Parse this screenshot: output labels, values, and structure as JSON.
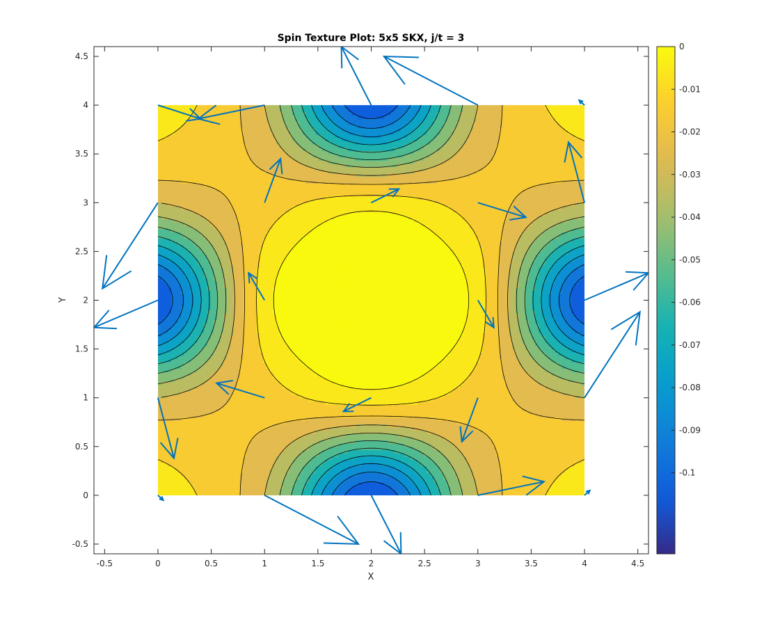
{
  "chart_data": {
    "type": "contour",
    "title": "Spin Texture Plot: 5x5 SKX, j/t = 3",
    "xlabel": "X",
    "ylabel": "Y",
    "xlim": [
      -0.6,
      4.6
    ],
    "ylim": [
      -0.6,
      4.6
    ],
    "xticks": [
      -0.5,
      0,
      0.5,
      1,
      1.5,
      2,
      2.5,
      3,
      3.5,
      4,
      4.5
    ],
    "xtick_labels": [
      "-0.5",
      "0",
      "0.5",
      "1",
      "1.5",
      "2",
      "2.5",
      "3",
      "3.5",
      "4",
      "4.5"
    ],
    "yticks": [
      -0.5,
      0,
      0.5,
      1,
      1.5,
      2,
      2.5,
      3,
      3.5,
      4,
      4.5
    ],
    "ytick_labels": [
      "-0.5",
      "0",
      "0.5",
      "1",
      "1.5",
      "2",
      "2.5",
      "3",
      "3.5",
      "4",
      "4.5"
    ],
    "grid": false,
    "x": [
      0,
      1,
      2,
      3,
      4
    ],
    "y": [
      0,
      1,
      2,
      3,
      4
    ],
    "z": [
      [
        -0.005,
        -0.03,
        -0.11,
        -0.03,
        -0.005
      ],
      [
        -0.03,
        -0.015,
        -0.005,
        -0.015,
        -0.03
      ],
      [
        -0.11,
        -0.005,
        0.0,
        -0.005,
        -0.11
      ],
      [
        -0.03,
        -0.015,
        -0.005,
        -0.015,
        -0.03
      ],
      [
        -0.005,
        -0.03,
        -0.11,
        -0.03,
        -0.005
      ]
    ],
    "contour_levels": [
      -0.11,
      -0.1,
      -0.09,
      -0.08,
      -0.07,
      -0.06,
      -0.05,
      -0.04,
      -0.03,
      -0.02,
      -0.01,
      -0.001
    ],
    "colorbar": {
      "min": -0.119,
      "max": 0.0,
      "ticks": [
        0,
        -0.01,
        -0.02,
        -0.03,
        -0.04,
        -0.05,
        -0.06,
        -0.07,
        -0.08,
        -0.09,
        -0.1
      ],
      "tick_labels": [
        "0",
        "-0.01",
        "-0.02",
        "-0.03",
        "-0.04",
        "-0.05",
        "-0.06",
        "-0.07",
        "-0.08",
        "-0.09",
        "-0.1"
      ],
      "colormap": "parula"
    },
    "quiver": {
      "color": "#0072BD",
      "arrows": [
        {
          "x": 0,
          "y": 0,
          "u": 0.05,
          "v": -0.05
        },
        {
          "x": 0,
          "y": 1,
          "u": 0.15,
          "v": -0.62
        },
        {
          "x": 0,
          "y": 2,
          "u": -0.6,
          "v": -0.28
        },
        {
          "x": 0,
          "y": 3,
          "u": -0.52,
          "v": -0.88
        },
        {
          "x": 0,
          "y": 4,
          "u": 0.4,
          "v": -0.14
        },
        {
          "x": 1,
          "y": 0,
          "u": 0.88,
          "v": -0.5
        },
        {
          "x": 1,
          "y": 1,
          "u": -0.45,
          "v": 0.15
        },
        {
          "x": 1,
          "y": 2,
          "u": -0.15,
          "v": 0.28
        },
        {
          "x": 1,
          "y": 3,
          "u": 0.15,
          "v": 0.45
        },
        {
          "x": 1,
          "y": 4,
          "u": -0.62,
          "v": -0.14
        },
        {
          "x": 2,
          "y": 0,
          "u": 0.28,
          "v": -0.6
        },
        {
          "x": 2,
          "y": 1,
          "u": -0.26,
          "v": -0.14
        },
        {
          "x": 2,
          "y": 2,
          "u": 0,
          "v": 0
        },
        {
          "x": 2,
          "y": 3,
          "u": 0.26,
          "v": 0.14
        },
        {
          "x": 2,
          "y": 4,
          "u": -0.28,
          "v": 0.6
        },
        {
          "x": 3,
          "y": 0,
          "u": 0.62,
          "v": 0.14
        },
        {
          "x": 3,
          "y": 1,
          "u": -0.15,
          "v": -0.45
        },
        {
          "x": 3,
          "y": 2,
          "u": 0.15,
          "v": -0.28
        },
        {
          "x": 3,
          "y": 3,
          "u": 0.45,
          "v": -0.15
        },
        {
          "x": 3,
          "y": 4,
          "u": -0.88,
          "v": 0.5
        },
        {
          "x": 4,
          "y": 0,
          "u": 0.05,
          "v": 0.05
        },
        {
          "x": 4,
          "y": 1,
          "u": 0.52,
          "v": 0.88
        },
        {
          "x": 4,
          "y": 2,
          "u": 0.6,
          "v": 0.28
        },
        {
          "x": 4,
          "y": 3,
          "u": -0.15,
          "v": 0.62
        },
        {
          "x": 4,
          "y": 4,
          "u": -0.05,
          "v": 0.05
        }
      ]
    }
  }
}
